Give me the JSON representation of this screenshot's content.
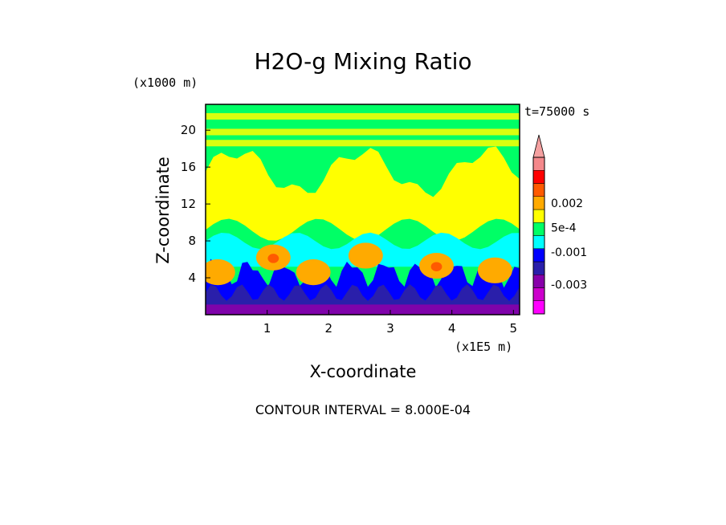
{
  "chart_data": {
    "type": "heatmap",
    "title": "H2O-g Mixing Ratio",
    "xlabel": "X-coordinate",
    "ylabel": "Z-coordinate",
    "x_unit": "(x1E5 m)",
    "y_unit": "(x1000 m)",
    "time_label": "t=75000 s",
    "footer": "CONTOUR INTERVAL = 8.000E-04",
    "x_ticks": [
      1,
      2,
      3,
      4,
      5
    ],
    "y_ticks": [
      4,
      8,
      12,
      16,
      20
    ],
    "xlim": [
      0.0,
      5.1
    ],
    "ylim": [
      0.0,
      22.8
    ],
    "colorbar": {
      "levels": [
        -0.0048,
        -0.004,
        -0.0032,
        -0.0024,
        -0.0016,
        -0.0008,
        0.0,
        0.0008,
        0.0016,
        0.0024,
        0.0032,
        0.004
      ],
      "colors": [
        "#ff00ff",
        "#cc00cc",
        "#8800aa",
        "#2a1faa",
        "#0000ff",
        "#00ffff",
        "#00ff66",
        "#ffff00",
        "#ffaa00",
        "#ff5a00",
        "#ff0000",
        "#f4888b"
      ],
      "overflow_color": "#f4a0a0",
      "tick_labels": [
        "0.002",
        "5e-4",
        "-0.001",
        "-0.003"
      ],
      "tick_values": [
        0.002,
        0.0005,
        -0.001,
        -0.003
      ]
    },
    "field_layers": [
      {
        "z_range": [
          0,
          2
        ],
        "value": "-0.003",
        "color": "#8800aa"
      },
      {
        "z_range": [
          2,
          5
        ],
        "value": "-0.0016",
        "color": "#0000ff"
      },
      {
        "z_range": [
          5,
          8
        ],
        "value": "0.0016",
        "color": "#ffaa00"
      },
      {
        "z_range": [
          6,
          9
        ],
        "value": "-0.0008",
        "color": "#00ffff"
      },
      {
        "z_range": [
          9,
          18
        ],
        "value": "0.0008",
        "color": "#ffff00"
      },
      {
        "z_range": [
          8,
          22.8
        ],
        "value": "0.0",
        "color": "#00ff66"
      }
    ]
  }
}
